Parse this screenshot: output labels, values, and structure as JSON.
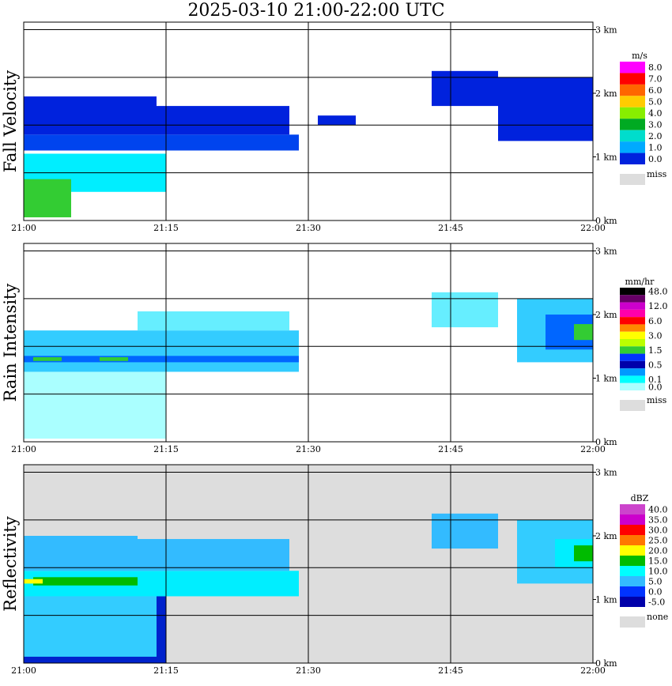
{
  "title": "2025-03-10   21:00-22:00 UTC",
  "x_ticks": [
    "21:00",
    "21:15",
    "21:30",
    "21:45",
    "22:00"
  ],
  "y_ticks": [
    "0 km",
    "1 km",
    "2 km",
    "3 km"
  ],
  "chart_data": [
    {
      "type": "heatmap",
      "title": "Fall Velocity",
      "ylabel": "Fall Velocity",
      "xlim": [
        0,
        60
      ],
      "ylim": [
        0,
        3.3
      ],
      "legend_unit": "m/s",
      "legend": [
        {
          "label": "8.0",
          "color": "#ff00ff"
        },
        {
          "label": "7.0",
          "color": "#ff0000"
        },
        {
          "label": "6.0",
          "color": "#ff6600"
        },
        {
          "label": "5.0",
          "color": "#ffcc00"
        },
        {
          "label": "4.0",
          "color": "#88ee00"
        },
        {
          "label": "3.0",
          "color": "#00aa22"
        },
        {
          "label": "2.0",
          "color": "#00ddcc"
        },
        {
          "label": "1.0",
          "color": "#00aaff"
        },
        {
          "label": "0.0",
          "color": "#0022dd"
        }
      ],
      "legend_miss": "miss",
      "cells": [
        {
          "t0": 0,
          "t1": 15,
          "z0": 0.45,
          "z1": 1.05,
          "color": "#00eeff"
        },
        {
          "t0": 0,
          "t1": 5,
          "z0": 0.05,
          "z1": 0.65,
          "color": "#33cc33"
        },
        {
          "t0": 0,
          "t1": 29,
          "z0": 1.1,
          "z1": 1.35,
          "color": "#0044ee"
        },
        {
          "t0": 0,
          "t1": 14,
          "z0": 1.35,
          "z1": 1.95,
          "color": "#0022dd"
        },
        {
          "t0": 14,
          "t1": 28,
          "z0": 1.35,
          "z1": 1.8,
          "color": "#0022dd"
        },
        {
          "t0": 22,
          "t1": 27,
          "z0": 1.5,
          "z1": 1.65,
          "color": "#0022dd"
        },
        {
          "t0": 31,
          "t1": 35,
          "z0": 1.5,
          "z1": 1.65,
          "color": "#0022dd"
        },
        {
          "t0": 43,
          "t1": 50,
          "z0": 1.8,
          "z1": 2.35,
          "color": "#0022dd"
        },
        {
          "t0": 50,
          "t1": 60,
          "z0": 1.25,
          "z1": 2.25,
          "color": "#0022dd"
        }
      ]
    },
    {
      "type": "heatmap",
      "title": "Rain Intensity",
      "ylabel": "Rain Intensity",
      "xlim": [
        0,
        60
      ],
      "ylim": [
        0,
        3.3
      ],
      "legend_unit": "mm/hr",
      "legend": [
        {
          "label": "48.0",
          "color": "#000000"
        },
        {
          "label": "",
          "color": "#660066"
        },
        {
          "label": "12.0",
          "color": "#cc00cc"
        },
        {
          "label": "",
          "color": "#ff00aa"
        },
        {
          "label": "6.0",
          "color": "#ff0000"
        },
        {
          "label": "",
          "color": "#ff8800"
        },
        {
          "label": "3.0",
          "color": "#ffff00"
        },
        {
          "label": "",
          "color": "#bbff00"
        },
        {
          "label": "1.5",
          "color": "#33cc33"
        },
        {
          "label": "",
          "color": "#0033ff"
        },
        {
          "label": "0.5",
          "color": "#0000aa"
        },
        {
          "label": "",
          "color": "#0099ff"
        },
        {
          "label": "0.1",
          "color": "#00ffff"
        },
        {
          "label": "0.0",
          "color": "#aaffff"
        }
      ],
      "legend_miss": "miss",
      "cells": [
        {
          "t0": 0,
          "t1": 15,
          "z0": 0.05,
          "z1": 1.1,
          "color": "#aaffff"
        },
        {
          "t0": 0,
          "t1": 29,
          "z0": 1.1,
          "z1": 1.75,
          "color": "#33ccff"
        },
        {
          "t0": 0,
          "t1": 29,
          "z0": 1.25,
          "z1": 1.35,
          "color": "#0066ff"
        },
        {
          "t0": 1,
          "t1": 4,
          "z0": 1.27,
          "z1": 1.33,
          "color": "#33cc33"
        },
        {
          "t0": 8,
          "t1": 11,
          "z0": 1.27,
          "z1": 1.33,
          "color": "#33cc33"
        },
        {
          "t0": 12,
          "t1": 28,
          "z0": 1.75,
          "z1": 2.05,
          "color": "#66eeff"
        },
        {
          "t0": 43,
          "t1": 50,
          "z0": 1.8,
          "z1": 2.35,
          "color": "#66eeff"
        },
        {
          "t0": 52,
          "t1": 60,
          "z0": 1.25,
          "z1": 2.25,
          "color": "#33ccff"
        },
        {
          "t0": 55,
          "t1": 60,
          "z0": 1.45,
          "z1": 2.0,
          "color": "#0066ff"
        },
        {
          "t0": 58,
          "t1": 60,
          "z0": 1.6,
          "z1": 1.85,
          "color": "#33cc33"
        }
      ]
    },
    {
      "type": "heatmap",
      "title": "Reflectivity",
      "ylabel": "Reflectivity",
      "xlim": [
        0,
        60
      ],
      "ylim": [
        0,
        3.3
      ],
      "legend_unit": "dBZ",
      "legend": [
        {
          "label": "40.0",
          "color": "#cc44cc"
        },
        {
          "label": "35.0",
          "color": "#cc00cc"
        },
        {
          "label": "30.0",
          "color": "#ff0000"
        },
        {
          "label": "25.0",
          "color": "#ff7700"
        },
        {
          "label": "20.0",
          "color": "#ffff00"
        },
        {
          "label": "15.0",
          "color": "#00bb00"
        },
        {
          "label": "10.0",
          "color": "#00ffff"
        },
        {
          "label": "5.0",
          "color": "#33bbff"
        },
        {
          "label": "0.0",
          "color": "#0033ff"
        },
        {
          "label": "-5.0",
          "color": "#0000aa"
        }
      ],
      "legend_miss": "none",
      "background": "#dddddd",
      "cells": [
        {
          "t0": 0,
          "t1": 15,
          "z0": 0.0,
          "z1": 1.05,
          "color": "#0022cc"
        },
        {
          "t0": 0,
          "t1": 14,
          "z0": 0.1,
          "z1": 1.05,
          "color": "#33ccff"
        },
        {
          "t0": 0,
          "t1": 29,
          "z0": 1.05,
          "z1": 1.45,
          "color": "#00eeff"
        },
        {
          "t0": 0,
          "t1": 12,
          "z0": 1.45,
          "z1": 2.0,
          "color": "#33bbff"
        },
        {
          "t0": 12,
          "t1": 28,
          "z0": 1.45,
          "z1": 1.95,
          "color": "#33bbff"
        },
        {
          "t0": 1,
          "t1": 12,
          "z0": 1.22,
          "z1": 1.35,
          "color": "#00bb00"
        },
        {
          "t0": 0,
          "t1": 2,
          "z0": 1.25,
          "z1": 1.32,
          "color": "#ffff00"
        },
        {
          "t0": 43,
          "t1": 50,
          "z0": 1.8,
          "z1": 2.35,
          "color": "#33bbff"
        },
        {
          "t0": 52,
          "t1": 60,
          "z0": 1.25,
          "z1": 2.25,
          "color": "#33ccff"
        },
        {
          "t0": 56,
          "t1": 60,
          "z0": 1.5,
          "z1": 1.95,
          "color": "#00eeff"
        },
        {
          "t0": 58,
          "t1": 60,
          "z0": 1.6,
          "z1": 1.85,
          "color": "#00bb00"
        }
      ]
    }
  ]
}
